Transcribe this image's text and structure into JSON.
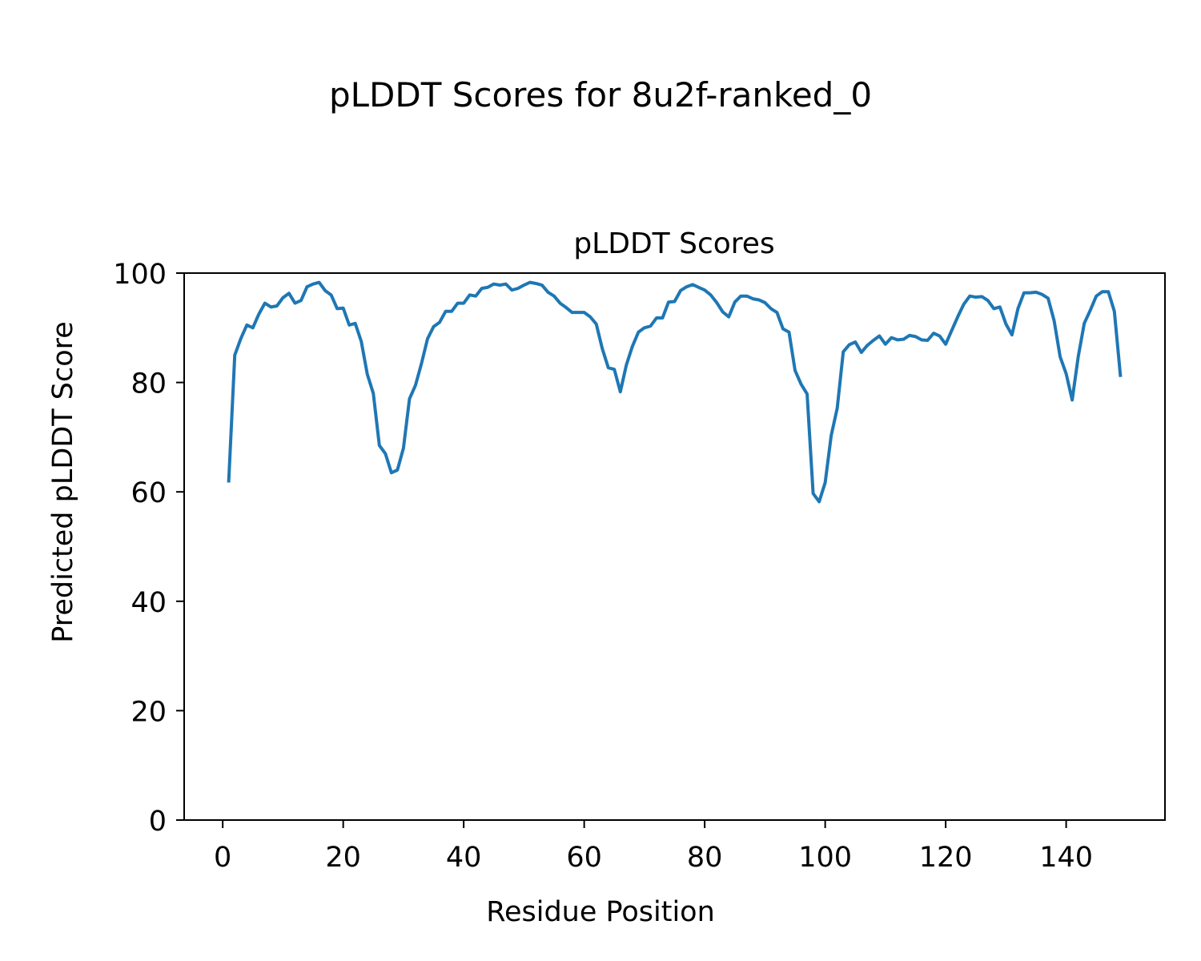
{
  "figure": {
    "suptitle": "pLDDT Scores for 8u2f-ranked_0"
  },
  "chart_data": {
    "type": "line",
    "title": "pLDDT Scores",
    "xlabel": "Residue Position",
    "ylabel": "Predicted pLDDT Score",
    "xlim": [
      -6.4,
      156.4
    ],
    "ylim": [
      0,
      100
    ],
    "xticks": [
      0,
      20,
      40,
      60,
      80,
      100,
      120,
      140
    ],
    "yticks": [
      0,
      20,
      40,
      60,
      80,
      100
    ],
    "grid": false,
    "line_color": "#1f77b4",
    "series": [
      {
        "x": [
          1,
          2,
          3,
          4,
          5,
          6,
          7,
          8,
          9,
          10,
          11,
          12,
          13,
          14,
          15,
          16,
          17,
          18,
          19,
          20,
          21,
          22,
          23,
          24,
          25,
          26,
          27,
          28,
          29,
          30,
          31,
          32,
          33,
          34,
          35,
          36,
          37,
          38,
          39,
          40,
          41,
          42,
          43,
          44,
          45,
          46,
          47,
          48,
          49,
          50,
          51,
          52,
          53,
          54,
          55,
          56,
          57,
          58,
          59,
          60,
          61,
          62,
          63,
          64,
          65,
          66,
          67,
          68,
          69,
          70,
          71,
          72,
          73,
          74,
          75,
          76,
          77,
          78,
          79,
          80,
          81,
          82,
          83,
          84,
          85,
          86,
          87,
          88,
          89,
          90,
          91,
          92,
          93,
          94,
          95,
          96,
          97,
          98,
          99,
          100,
          101,
          102,
          103,
          104,
          105,
          106,
          107,
          108,
          109,
          110,
          111,
          112,
          113,
          114,
          115,
          116,
          117,
          118,
          119,
          120,
          121,
          122,
          123,
          124,
          125,
          126,
          127,
          128,
          129,
          130,
          131,
          132,
          133,
          134,
          135,
          136,
          137,
          138,
          139,
          140,
          141,
          142,
          143,
          144,
          145,
          146,
          147,
          148,
          149
        ],
        "y": [
          62,
          85,
          88,
          90.5,
          90,
          92.5,
          94.5,
          93.8,
          94,
          95.5,
          96.3,
          94.5,
          95,
          97.5,
          98,
          98.3,
          96.8,
          96,
          93.5,
          93.6,
          90.5,
          90.8,
          87.5,
          81.5,
          78,
          68.5,
          67,
          63.5,
          64,
          68,
          77,
          79.5,
          83.5,
          88,
          90.2,
          91,
          93,
          93,
          94.5,
          94.5,
          96,
          95.8,
          97.2,
          97.4,
          98,
          97.8,
          98,
          96.9,
          97.2,
          97.8,
          98.3,
          98.1,
          97.8,
          96.5,
          95.8,
          94.5,
          93.7,
          92.8,
          92.8,
          92.8,
          92,
          90.7,
          86.2,
          82.7,
          82.4,
          78.3,
          83.2,
          86.6,
          89.2,
          90,
          90.3,
          91.8,
          91.8,
          94.7,
          94.8,
          96.8,
          97.5,
          97.9,
          97.4,
          96.9,
          96,
          94.6,
          92.9,
          92,
          94.7,
          95.8,
          95.8,
          95.3,
          95.1,
          94.6,
          93.5,
          92.8,
          89.8,
          89.2,
          82.2,
          79.7,
          77.9,
          59.7,
          58.2,
          61.7,
          70.3,
          75.3,
          85.6,
          86.9,
          87.4,
          85.5,
          86.8,
          87.7,
          88.5,
          87,
          88.2,
          87.8,
          87.9,
          88.6,
          88.4,
          87.8,
          87.7,
          89,
          88.5,
          87,
          89.5,
          92,
          94.3,
          95.8,
          95.6,
          95.7,
          95,
          93.5,
          93.8,
          90.7,
          88.7,
          93.5,
          96.4,
          96.4,
          96.5,
          96.1,
          95.4,
          91.3,
          84.7,
          81.6,
          76.8,
          84.7,
          90.8,
          93.2,
          95.8,
          96.6,
          96.6,
          93,
          81.3
        ]
      }
    ]
  }
}
